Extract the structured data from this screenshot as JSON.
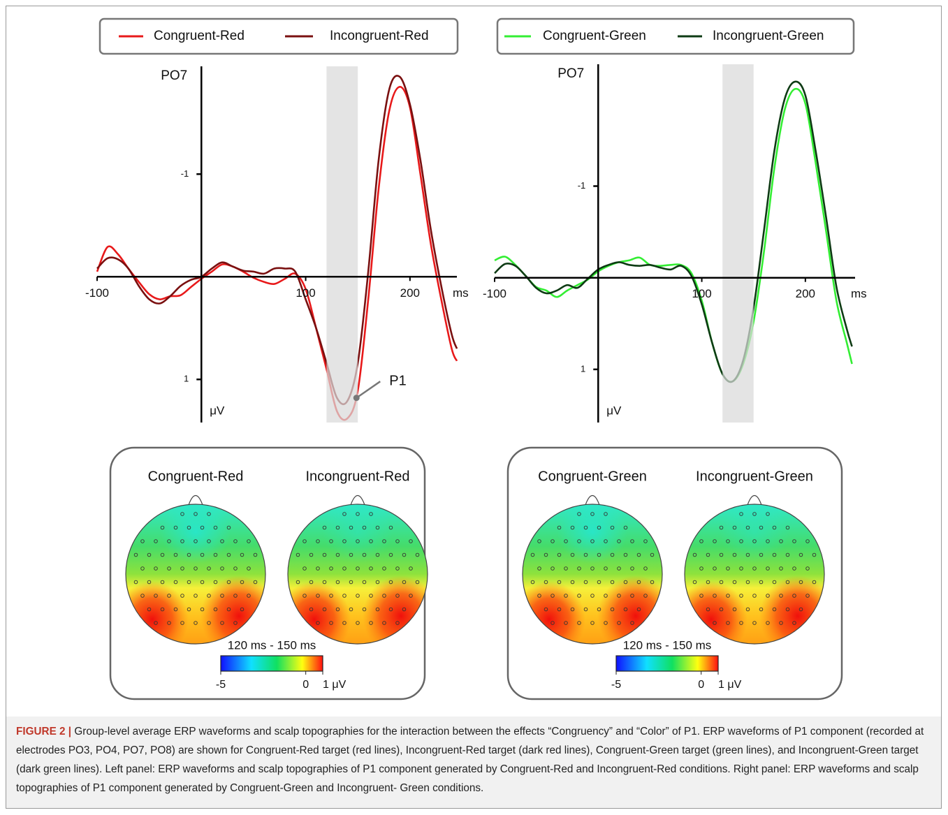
{
  "chart_data": [
    {
      "type": "line",
      "legend": "top",
      "channel": "PO7",
      "y_label": "μV",
      "x_label": "ms",
      "annotation": "P1",
      "highlight": [
        120,
        150
      ],
      "highlight_color": "#d9d9d9",
      "x": [
        -100,
        -90,
        -80,
        -70,
        -60,
        -50,
        -40,
        -30,
        -20,
        -10,
        0,
        10,
        20,
        30,
        40,
        50,
        60,
        70,
        80,
        90,
        100,
        110,
        120,
        130,
        140,
        150,
        160,
        170,
        180,
        190,
        200,
        210,
        220,
        230,
        240,
        245
      ],
      "series": [
        {
          "name": "Congruent-Red",
          "color": "#e8191a",
          "values": [
            -0.05,
            -0.29,
            -0.22,
            -0.08,
            0.05,
            0.17,
            0.22,
            0.19,
            0.18,
            0.1,
            0.02,
            -0.05,
            -0.12,
            -0.1,
            -0.05,
            0.01,
            0.05,
            0.07,
            0.02,
            -0.03,
            0.12,
            0.5,
            0.9,
            1.31,
            1.38,
            1.11,
            0.22,
            -0.86,
            -1.61,
            -1.85,
            -1.65,
            -1.0,
            -0.32,
            0.22,
            0.7,
            0.82
          ]
        },
        {
          "name": "Incongruent-Red",
          "color": "#7a1010",
          "values": [
            -0.08,
            -0.18,
            -0.17,
            -0.08,
            0.09,
            0.22,
            0.26,
            0.19,
            0.09,
            0.03,
            0,
            -0.08,
            -0.14,
            -0.1,
            -0.06,
            -0.05,
            -0.03,
            -0.08,
            -0.08,
            -0.05,
            0.22,
            0.5,
            0.84,
            1.18,
            1.21,
            0.84,
            -0.05,
            -1.14,
            -1.82,
            -1.95,
            -1.68,
            -1.14,
            -0.46,
            0.09,
            0.56,
            0.7
          ]
        }
      ],
      "xlim": [
        -100,
        245
      ],
      "ylim": [
        1.42,
        -2.05
      ],
      "xticks": [
        -100,
        100,
        200
      ],
      "yticks": [
        -1,
        1
      ]
    },
    {
      "type": "line",
      "legend": "top",
      "channel": "PO7",
      "y_label": "μV",
      "x_label": "ms",
      "highlight": [
        120,
        150
      ],
      "highlight_color": "#d9d9d9",
      "x": [
        -100,
        -90,
        -80,
        -70,
        -60,
        -50,
        -40,
        -30,
        -20,
        -10,
        0,
        10,
        20,
        30,
        40,
        50,
        60,
        70,
        80,
        90,
        100,
        110,
        120,
        130,
        140,
        150,
        160,
        170,
        180,
        190,
        200,
        210,
        220,
        230,
        240,
        245
      ],
      "series": [
        {
          "name": "Congruent-Green",
          "color": "#33ee33",
          "values": [
            -0.19,
            -0.23,
            -0.14,
            -0.02,
            0.1,
            0.14,
            0.21,
            0.14,
            0.08,
            0.02,
            -0.07,
            -0.13,
            -0.17,
            -0.19,
            -0.22,
            -0.14,
            -0.13,
            -0.14,
            -0.14,
            -0.05,
            0.25,
            0.71,
            1.05,
            1.13,
            0.94,
            0.48,
            -0.28,
            -1.19,
            -1.83,
            -2.06,
            -1.9,
            -1.25,
            -0.51,
            0.25,
            0.71,
            0.94
          ]
        },
        {
          "name": "Incongruent-Green",
          "color": "#0e3b14",
          "values": [
            -0.05,
            -0.15,
            -0.13,
            -0.02,
            0.11,
            0.17,
            0.14,
            0.08,
            0.11,
            0.01,
            -0.09,
            -0.14,
            -0.17,
            -0.14,
            -0.13,
            -0.14,
            -0.11,
            -0.09,
            -0.13,
            -0.02,
            0.29,
            0.71,
            1.05,
            1.13,
            0.9,
            0.33,
            -0.51,
            -1.38,
            -1.95,
            -2.14,
            -1.99,
            -1.38,
            -0.66,
            0.1,
            0.56,
            0.75
          ]
        }
      ],
      "xlim": [
        -100,
        248
      ],
      "ylim": [
        1.58,
        -2.33
      ],
      "xticks": [
        -100,
        100,
        200
      ],
      "yticks": [
        -1,
        1
      ]
    }
  ],
  "topographies": [
    {
      "maps": [
        "Congruent-Red",
        "Incongruent-Red"
      ],
      "colorbar": {
        "label": "120 ms - 150 ms",
        "lim": [
          -5,
          1
        ],
        "ticks": [
          -5,
          0,
          {
            "value": 1,
            "label": "1 μV"
          }
        ]
      }
    },
    {
      "maps": [
        "Congruent-Green",
        "Incongruent-Green"
      ],
      "colorbar": {
        "label": "120 ms - 150 ms",
        "lim": [
          -5,
          1
        ],
        "ticks": [
          -5,
          0,
          {
            "value": 1,
            "label": "1 μV"
          }
        ]
      }
    }
  ],
  "caption": {
    "label": "FIGURE 2 |",
    "text": "Group-level average ERP waveforms and scalp topographies for the interaction between the effects “Congruency” and “Color” of P1. ERP waveforms of P1 component (recorded at electrodes PO3, PO4, PO7, PO8) are shown for Congruent-Red target (red lines), Incongruent-Red target (dark red lines), Congruent-Green target (green lines), and Incongruent-Green target (dark green lines). Left panel: ERP waveforms and scalp topographies of P1 component generated by Congruent-Red and Incongruent-Red conditions. Right panel: ERP waveforms and scalp topographies of P1 component generated by Congruent-Green and Incongruent- Green conditions."
  }
}
